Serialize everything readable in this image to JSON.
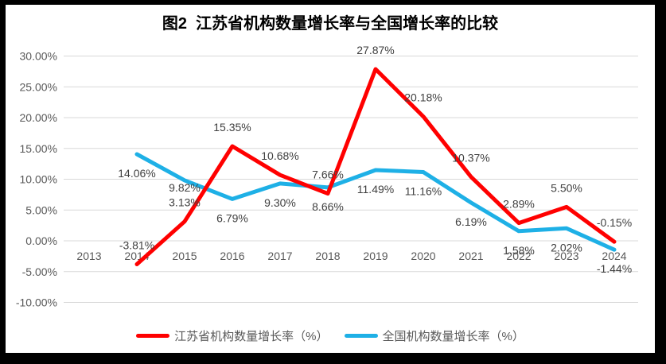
{
  "chart_data": {
    "type": "line",
    "title": "图2  江苏省机构数量增长率与全国增长率的比较",
    "x_categories": [
      "2013",
      "2014",
      "2015",
      "2016",
      "2017",
      "2018",
      "2019",
      "2020",
      "2021",
      "2022",
      "2023",
      "2024"
    ],
    "y_axis": {
      "tick_labels": [
        "30.00%",
        "25.00%",
        "20.00%",
        "15.00%",
        "10.00%",
        "5.00%",
        "0.00%",
        "-5.00%",
        "-10.00%"
      ],
      "tick_values": [
        30,
        25,
        20,
        15,
        10,
        5,
        0,
        -5,
        -10
      ],
      "min": -10,
      "max": 30
    },
    "grid": "horizontal",
    "legend_position": "bottom",
    "series": [
      {
        "name": "江苏省机构数量增长率（%）",
        "color": "#FF0000",
        "x": [
          "2014",
          "2015",
          "2016",
          "2017",
          "2018",
          "2019",
          "2020",
          "2021",
          "2022",
          "2023",
          "2024"
        ],
        "values": [
          -3.81,
          3.13,
          15.35,
          10.68,
          7.66,
          27.87,
          20.18,
          10.37,
          2.89,
          5.5,
          -0.15
        ],
        "labels": [
          "-3.81%",
          "3.13%",
          "15.35%",
          "10.68%",
          "7.66%",
          "27.87%",
          "20.18%",
          "10.37%",
          "2.89%",
          "5.50%",
          "-0.15%"
        ]
      },
      {
        "name": "全国机构数量增长率（%）",
        "color": "#1EB0E6",
        "x": [
          "2014",
          "2015",
          "2016",
          "2017",
          "2018",
          "2019",
          "2020",
          "2021",
          "2022",
          "2023",
          "2024"
        ],
        "values": [
          14.06,
          9.82,
          6.79,
          9.3,
          8.66,
          11.49,
          11.16,
          6.19,
          1.58,
          2.02,
          -1.44
        ],
        "labels": [
          "14.06%",
          "9.82%",
          "6.79%",
          "9.30%",
          "8.66%",
          "11.49%",
          "11.16%",
          "6.19%",
          "1.58%",
          "2.02%",
          "-1.44%"
        ]
      }
    ],
    "colors": {
      "gridline": "#D9D9D9",
      "axis_text": "#595959",
      "data_label_text": "#404040",
      "panel_background": "#FFFFFF",
      "page_border": "#000000"
    }
  }
}
